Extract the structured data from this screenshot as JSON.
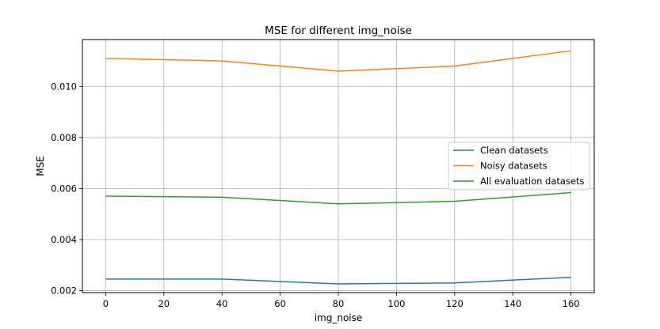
{
  "chart_data": {
    "type": "line",
    "title": "MSE for different img_noise",
    "xlabel": "img_noise",
    "ylabel": "MSE",
    "x": [
      0,
      40,
      80,
      120,
      160
    ],
    "xticks": [
      0,
      20,
      40,
      60,
      80,
      100,
      120,
      140,
      160
    ],
    "xtick_labels": [
      "0",
      "20",
      "40",
      "60",
      "80",
      "100",
      "120",
      "140",
      "160"
    ],
    "yticks": [
      0.002,
      0.004,
      0.006,
      0.008,
      0.01
    ],
    "ytick_labels": [
      "0.002",
      "0.004",
      "0.006",
      "0.008",
      "0.010"
    ],
    "xlim": [
      -8,
      168
    ],
    "ylim": [
      0.00192,
      0.01184
    ],
    "grid": true,
    "legend_position": "center-right",
    "series": [
      {
        "name": "Clean datasets",
        "color": "#1f77b4",
        "values": [
          0.00245,
          0.00245,
          0.00226,
          0.0023,
          0.00252
        ]
      },
      {
        "name": "Noisy datasets",
        "color": "#ff7f0e",
        "values": [
          0.0111,
          0.011,
          0.0106,
          0.0108,
          0.0114
        ]
      },
      {
        "name": "All evaluation datasets",
        "color": "#2ca02c",
        "values": [
          0.0057,
          0.00566,
          0.0054,
          0.0055,
          0.00584
        ]
      }
    ]
  }
}
